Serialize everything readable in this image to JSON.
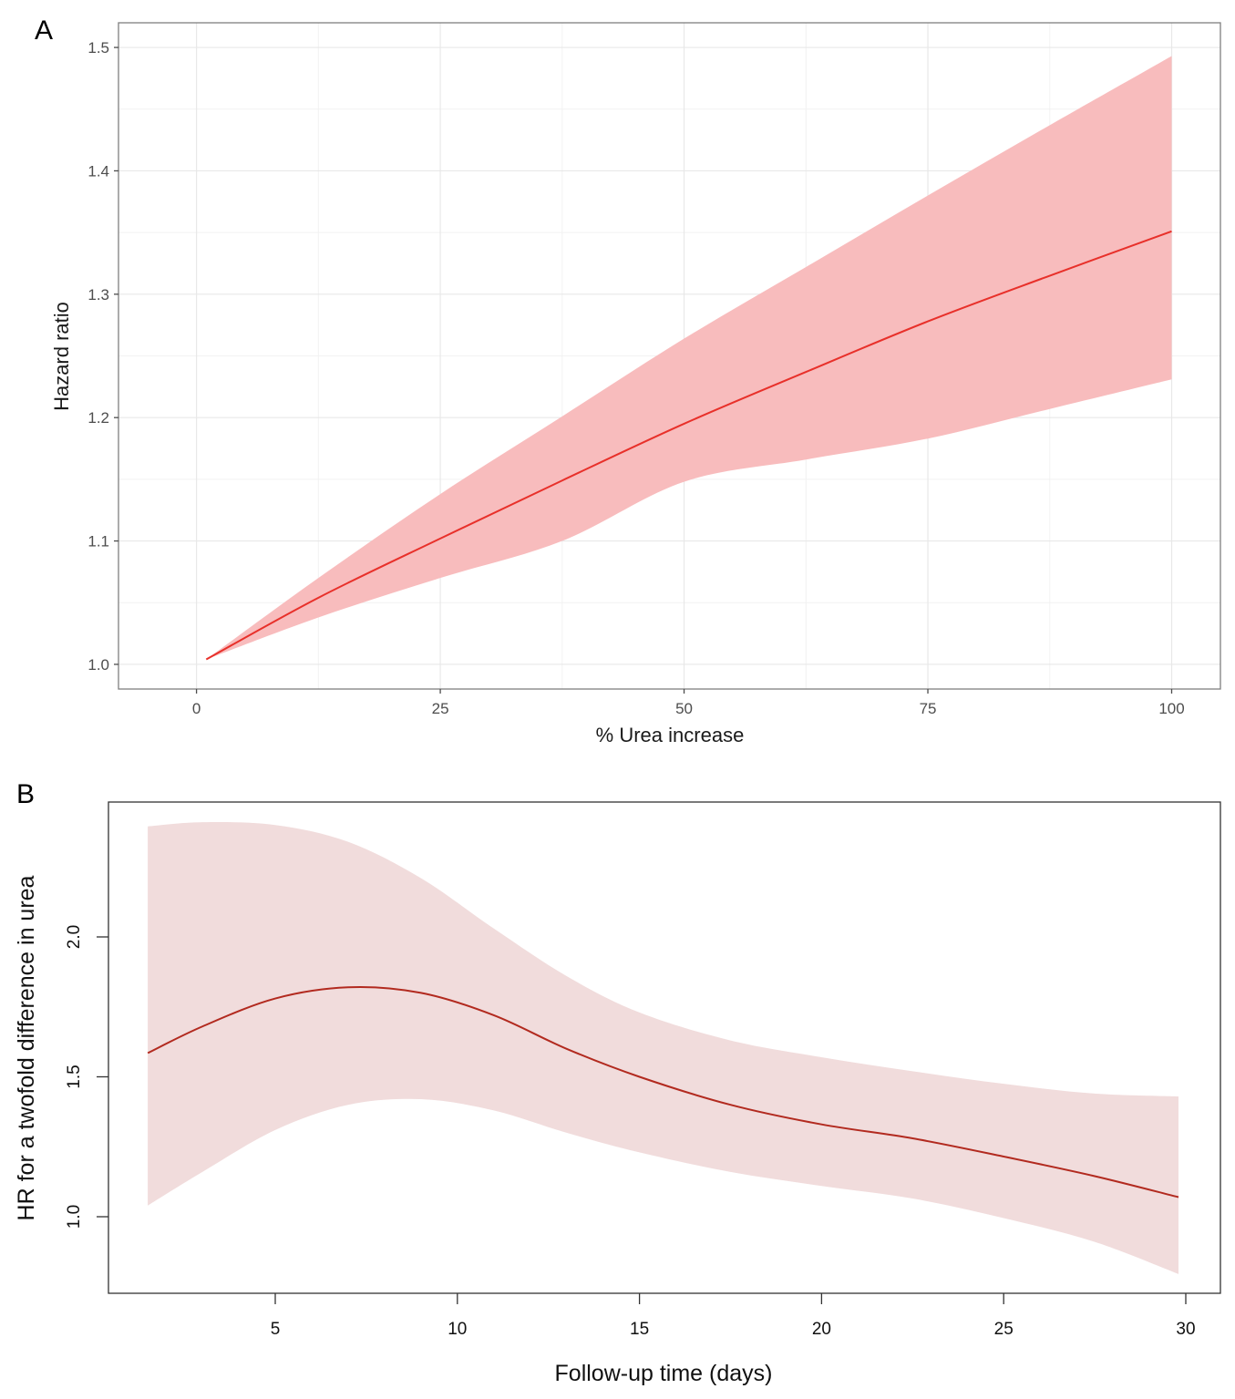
{
  "chart_data": [
    {
      "panel": "A",
      "type": "line",
      "title": "",
      "xlabel": "% Urea increase",
      "ylabel": "Hazard ratio",
      "xlim": [
        -8,
        105
      ],
      "ylim": [
        0.98,
        1.52
      ],
      "xticks": [
        0,
        25,
        50,
        75,
        100
      ],
      "xtick_labels": [
        "0",
        "25",
        "50",
        "75",
        "100"
      ],
      "yticks": [
        1.0,
        1.1,
        1.2,
        1.3,
        1.4,
        1.5
      ],
      "ytick_labels": [
        "1.0",
        "1.1",
        "1.2",
        "1.3",
        "1.4",
        "1.5"
      ],
      "grid": true,
      "legend": "none",
      "colors": {
        "line": "#e8302a",
        "band": "#f8bcbd"
      },
      "series": [
        {
          "name": "Hazard ratio",
          "x": [
            1,
            12.5,
            25,
            37.5,
            50,
            62.5,
            75,
            87.5,
            100
          ],
          "values": [
            1.004,
            1.054,
            1.102,
            1.149,
            1.195,
            1.237,
            1.278,
            1.315,
            1.351
          ],
          "lower": [
            1.004,
            1.038,
            1.07,
            1.1,
            1.148,
            1.166,
            1.183,
            1.207,
            1.231
          ],
          "upper": [
            1.004,
            1.07,
            1.138,
            1.201,
            1.264,
            1.322,
            1.38,
            1.437,
            1.493
          ]
        }
      ]
    },
    {
      "panel": "B",
      "type": "line",
      "title": "",
      "xlabel": "Follow-up time (days)",
      "ylabel": "HR for a twofold difference in urea",
      "xlim": [
        0.4,
        31.8
      ],
      "ylim": [
        0.73,
        2.25
      ],
      "xticks": [
        5,
        10,
        15,
        20,
        25,
        30
      ],
      "xtick_labels": [
        "5",
        "10",
        "15",
        "20",
        "25",
        "30"
      ],
      "yticks": [
        1.0,
        1.5,
        2.0
      ],
      "ytick_labels": [
        "1.0",
        "1.5",
        "2.0"
      ],
      "grid": false,
      "legend": "none",
      "colors": {
        "line": "#b22a1f",
        "band": "#f1dcdc"
      },
      "series": [
        {
          "name": "HR",
          "x": [
            1.5,
            3,
            5,
            7,
            9,
            11,
            13,
            15,
            17.5,
            20,
            22.5,
            25,
            27.5,
            29.8
          ],
          "values": [
            1.585,
            1.68,
            1.78,
            1.82,
            1.8,
            1.72,
            1.6,
            1.5,
            1.4,
            1.33,
            1.28,
            1.215,
            1.145,
            1.07
          ],
          "lower": [
            1.04,
            1.16,
            1.31,
            1.4,
            1.42,
            1.38,
            1.3,
            1.23,
            1.16,
            1.11,
            1.065,
            0.995,
            0.91,
            0.795
          ],
          "upper": [
            2.395,
            2.41,
            2.4,
            2.34,
            2.21,
            2.03,
            1.86,
            1.73,
            1.63,
            1.57,
            1.52,
            1.475,
            1.44,
            1.43
          ]
        }
      ]
    }
  ],
  "panels": {
    "a": {
      "letter": "A"
    },
    "b": {
      "letter": "B"
    }
  }
}
